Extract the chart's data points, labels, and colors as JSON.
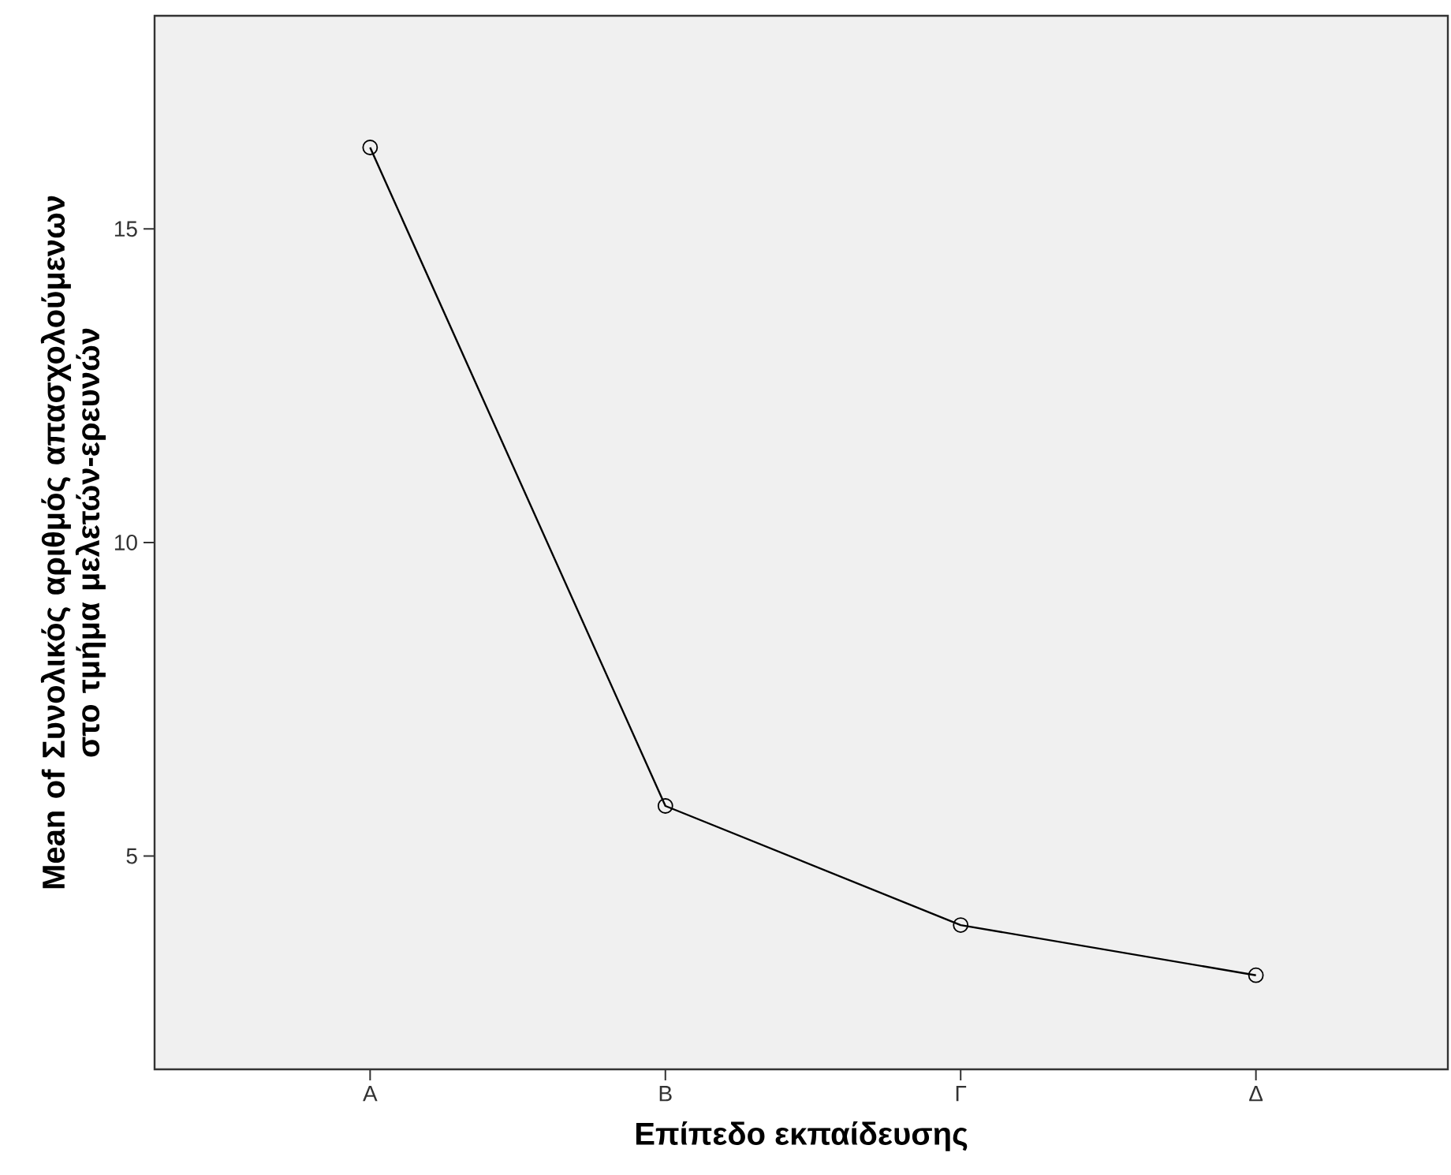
{
  "chart_data": {
    "type": "line",
    "xlabel": "Επίπεδο εκπαίδευσης",
    "ylabel": "Mean of Συνολικός αριθμός απασχολούμενων στο τμήμα μελετών-ερευνών",
    "categories": [
      "Α",
      "Β",
      "Γ",
      "Δ"
    ],
    "series": [
      {
        "color": "#000000",
        "values": [
          16.3,
          5.8,
          3.9,
          3.1
        ]
      }
    ],
    "ylim": [
      1.6,
      18.4
    ],
    "yticks": [
      5,
      10,
      15
    ],
    "marker": "circle",
    "line_style": "solid"
  }
}
